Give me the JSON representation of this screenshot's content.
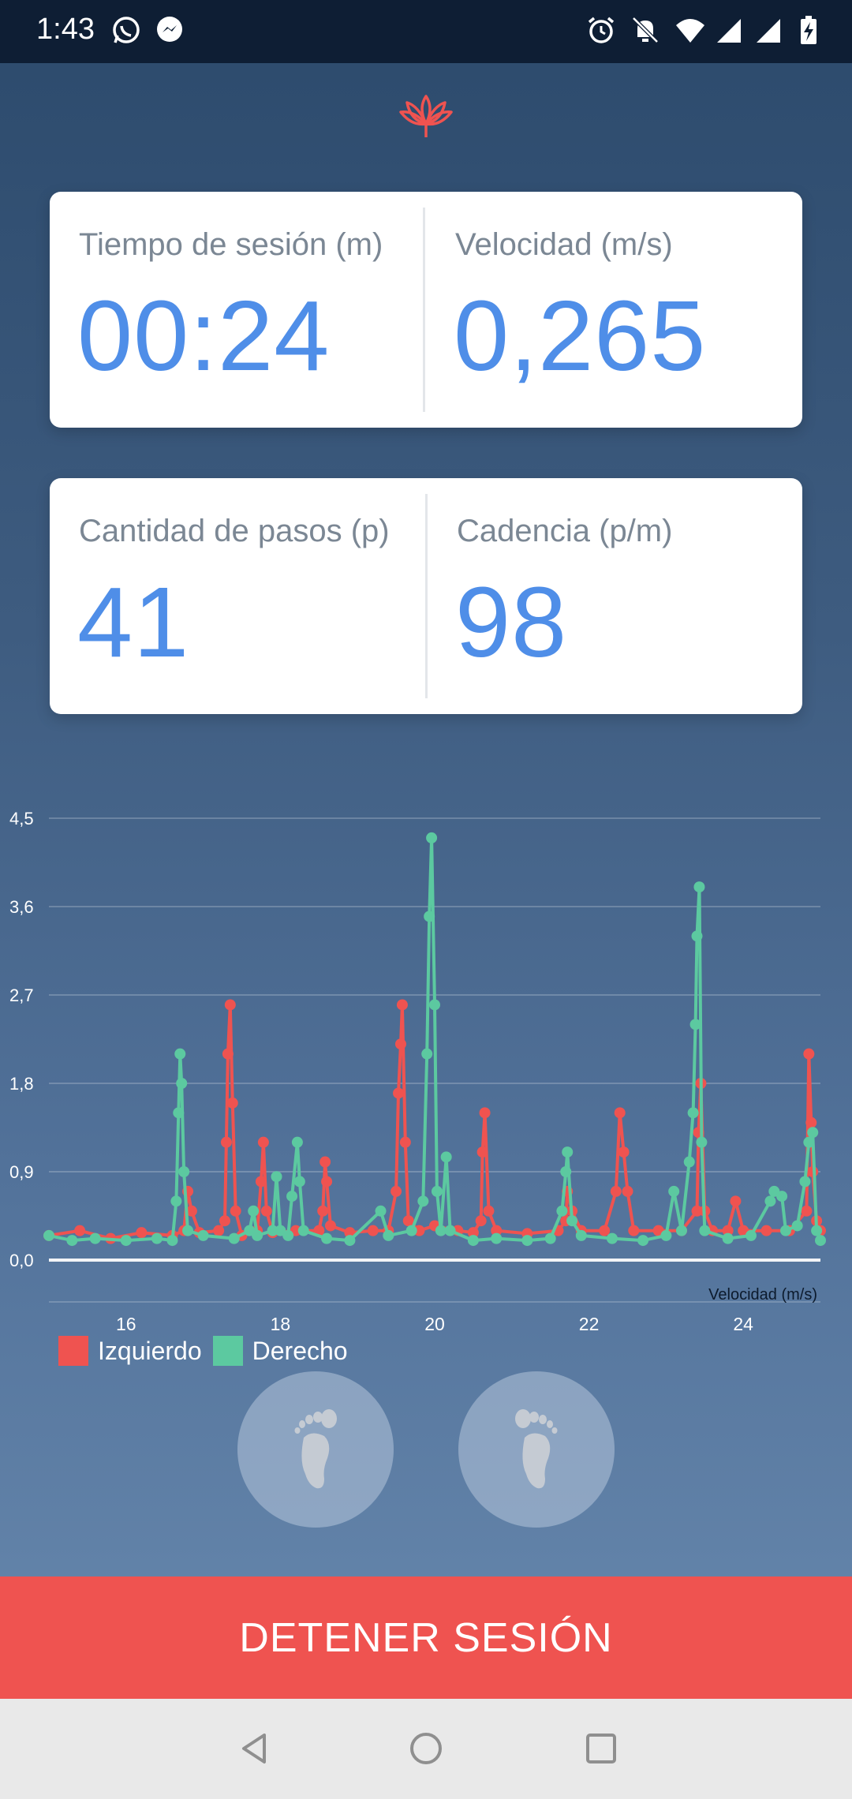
{
  "status_bar": {
    "time": "1:43",
    "icons_left": [
      "whatsapp-icon",
      "messenger-icon"
    ],
    "icons_right": [
      "alarm-icon",
      "notifications-off-icon",
      "wifi-icon",
      "signal-icon",
      "battery-charging-icon"
    ]
  },
  "header": {
    "logo_icon": "lotus-logo-icon",
    "accent_color": "#ef5350"
  },
  "cards": [
    {
      "left_label": "Tiempo de sesión (m)",
      "left_value": "00:24",
      "right_label": "Velocidad (m/s)",
      "right_value": "0,265"
    },
    {
      "left_label": "Cantidad de pasos (p)",
      "left_value": "41",
      "right_label": "Cadencia (p/m)",
      "right_value": "98"
    }
  ],
  "colors": {
    "value_blue": "#4f8ee8",
    "label_gray": "#7b8794",
    "left_series": "#ef5350",
    "right_series": "#5cc9a0"
  },
  "chart_data": {
    "type": "line",
    "x_axis_title": "Velocidad (m/s)",
    "xlim": [
      15,
      25
    ],
    "ylim": [
      0,
      4.5
    ],
    "y_ticks": [
      "0,0",
      "0,9",
      "1,8",
      "2,7",
      "3,6",
      "4,5"
    ],
    "y_tick_values": [
      0,
      0.9,
      1.8,
      2.7,
      3.6,
      4.5
    ],
    "x_ticks": [
      "16",
      "18",
      "20",
      "22",
      "24"
    ],
    "x_tick_values": [
      16,
      18,
      20,
      22,
      24
    ],
    "grid": true,
    "legend_placement": "bottom-left",
    "series": [
      {
        "name": "Izquierdo",
        "color": "#ef5350",
        "points": [
          [
            15.0,
            0.25
          ],
          [
            15.4,
            0.3
          ],
          [
            15.8,
            0.22
          ],
          [
            16.2,
            0.28
          ],
          [
            16.6,
            0.25
          ],
          [
            16.75,
            0.3
          ],
          [
            16.8,
            0.7
          ],
          [
            16.85,
            0.5
          ],
          [
            16.95,
            0.28
          ],
          [
            17.2,
            0.3
          ],
          [
            17.28,
            0.4
          ],
          [
            17.3,
            1.2
          ],
          [
            17.32,
            2.1
          ],
          [
            17.35,
            2.6
          ],
          [
            17.38,
            1.6
          ],
          [
            17.42,
            0.5
          ],
          [
            17.5,
            0.25
          ],
          [
            17.7,
            0.3
          ],
          [
            17.75,
            0.8
          ],
          [
            17.78,
            1.2
          ],
          [
            17.82,
            0.5
          ],
          [
            17.9,
            0.28
          ],
          [
            18.2,
            0.3
          ],
          [
            18.5,
            0.3
          ],
          [
            18.55,
            0.5
          ],
          [
            18.58,
            1.0
          ],
          [
            18.6,
            0.8
          ],
          [
            18.65,
            0.35
          ],
          [
            18.9,
            0.28
          ],
          [
            19.2,
            0.3
          ],
          [
            19.4,
            0.3
          ],
          [
            19.5,
            0.7
          ],
          [
            19.53,
            1.7
          ],
          [
            19.56,
            2.2
          ],
          [
            19.58,
            2.6
          ],
          [
            19.62,
            1.2
          ],
          [
            19.66,
            0.4
          ],
          [
            19.8,
            0.3
          ],
          [
            20.0,
            0.35
          ],
          [
            20.3,
            0.3
          ],
          [
            20.5,
            0.28
          ],
          [
            20.6,
            0.4
          ],
          [
            20.62,
            1.1
          ],
          [
            20.65,
            1.5
          ],
          [
            20.7,
            0.5
          ],
          [
            20.8,
            0.3
          ],
          [
            21.2,
            0.27
          ],
          [
            21.6,
            0.3
          ],
          [
            21.7,
            0.4
          ],
          [
            21.72,
            0.7
          ],
          [
            21.78,
            0.5
          ],
          [
            21.9,
            0.3
          ],
          [
            22.2,
            0.3
          ],
          [
            22.35,
            0.7
          ],
          [
            22.4,
            1.5
          ],
          [
            22.45,
            1.1
          ],
          [
            22.5,
            0.7
          ],
          [
            22.58,
            0.3
          ],
          [
            22.9,
            0.3
          ],
          [
            23.2,
            0.3
          ],
          [
            23.4,
            0.5
          ],
          [
            23.42,
            1.3
          ],
          [
            23.45,
            1.8
          ],
          [
            23.5,
            0.5
          ],
          [
            23.6,
            0.3
          ],
          [
            23.8,
            0.3
          ],
          [
            23.9,
            0.6
          ],
          [
            24.0,
            0.3
          ],
          [
            24.3,
            0.3
          ],
          [
            24.6,
            0.3
          ],
          [
            24.82,
            0.5
          ],
          [
            24.85,
            2.1
          ],
          [
            24.88,
            1.4
          ],
          [
            24.9,
            0.9
          ],
          [
            24.95,
            0.4
          ],
          [
            25.0,
            0.3
          ]
        ]
      },
      {
        "name": "Derecho",
        "color": "#5cc9a0",
        "points": [
          [
            15.0,
            0.25
          ],
          [
            15.3,
            0.2
          ],
          [
            15.6,
            0.22
          ],
          [
            16.0,
            0.2
          ],
          [
            16.4,
            0.22
          ],
          [
            16.6,
            0.2
          ],
          [
            16.65,
            0.6
          ],
          [
            16.68,
            1.5
          ],
          [
            16.7,
            2.1
          ],
          [
            16.72,
            1.8
          ],
          [
            16.75,
            0.9
          ],
          [
            16.8,
            0.3
          ],
          [
            17.0,
            0.25
          ],
          [
            17.4,
            0.22
          ],
          [
            17.6,
            0.3
          ],
          [
            17.65,
            0.5
          ],
          [
            17.7,
            0.25
          ],
          [
            17.9,
            0.3
          ],
          [
            17.95,
            0.85
          ],
          [
            18.0,
            0.3
          ],
          [
            18.1,
            0.25
          ],
          [
            18.15,
            0.65
          ],
          [
            18.22,
            1.2
          ],
          [
            18.25,
            0.8
          ],
          [
            18.3,
            0.3
          ],
          [
            18.6,
            0.22
          ],
          [
            18.9,
            0.2
          ],
          [
            19.3,
            0.5
          ],
          [
            19.4,
            0.25
          ],
          [
            19.7,
            0.3
          ],
          [
            19.85,
            0.6
          ],
          [
            19.9,
            2.1
          ],
          [
            19.93,
            3.5
          ],
          [
            19.96,
            4.3
          ],
          [
            20.0,
            2.6
          ],
          [
            20.03,
            0.7
          ],
          [
            20.08,
            0.3
          ],
          [
            20.15,
            1.05
          ],
          [
            20.2,
            0.3
          ],
          [
            20.5,
            0.2
          ],
          [
            20.8,
            0.22
          ],
          [
            21.2,
            0.2
          ],
          [
            21.5,
            0.22
          ],
          [
            21.65,
            0.5
          ],
          [
            21.7,
            0.9
          ],
          [
            21.72,
            1.1
          ],
          [
            21.78,
            0.4
          ],
          [
            21.9,
            0.25
          ],
          [
            22.3,
            0.22
          ],
          [
            22.7,
            0.2
          ],
          [
            23.0,
            0.25
          ],
          [
            23.1,
            0.7
          ],
          [
            23.2,
            0.3
          ],
          [
            23.3,
            1.0
          ],
          [
            23.35,
            1.5
          ],
          [
            23.38,
            2.4
          ],
          [
            23.4,
            3.3
          ],
          [
            23.43,
            3.8
          ],
          [
            23.46,
            1.2
          ],
          [
            23.5,
            0.3
          ],
          [
            23.8,
            0.22
          ],
          [
            24.1,
            0.25
          ],
          [
            24.35,
            0.6
          ],
          [
            24.4,
            0.7
          ],
          [
            24.5,
            0.65
          ],
          [
            24.55,
            0.3
          ],
          [
            24.7,
            0.35
          ],
          [
            24.8,
            0.8
          ],
          [
            24.85,
            1.2
          ],
          [
            24.9,
            1.3
          ],
          [
            24.95,
            0.3
          ],
          [
            25.0,
            0.2
          ]
        ]
      }
    ]
  },
  "legend": [
    {
      "label": "Izquierdo",
      "color": "#ef5350"
    },
    {
      "label": "Derecho",
      "color": "#5cc9a0"
    }
  ],
  "foot_buttons": {
    "left_icon": "left-foot-icon",
    "right_icon": "right-foot-icon"
  },
  "stop_button": {
    "label": "DETENER SESIÓN"
  },
  "nav_bar": {
    "icons": [
      "back-icon",
      "home-icon",
      "recents-icon"
    ]
  }
}
